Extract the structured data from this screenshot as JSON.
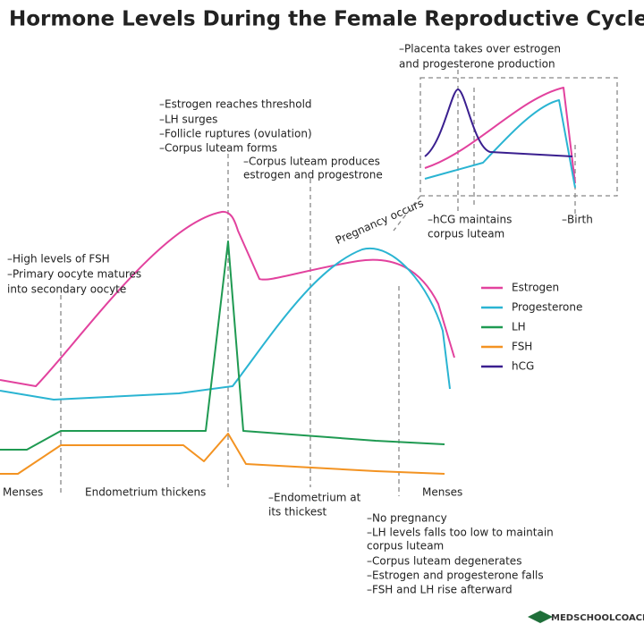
{
  "title": "Hormone Levels During the Female Reproductive Cycle",
  "legend": {
    "items": [
      {
        "name": "Estrogen",
        "color": "#e2429e"
      },
      {
        "name": "Progesterone",
        "color": "#2ab4d2"
      },
      {
        "name": "LH",
        "color": "#1f9a52"
      },
      {
        "name": "FSH",
        "color": "#f39322"
      },
      {
        "name": "hCG",
        "color": "#3a1f8f"
      }
    ]
  },
  "annotations": {
    "placenta": [
      "–Placenta takes over estrogen",
      "and progesterone production"
    ],
    "ovulation": [
      "–Estrogen reaches threshold",
      "–LH surges",
      "–Follicle ruptures (ovulation)",
      "–Corpus luteam forms"
    ],
    "corpus_luteum": [
      "–Corpus luteam produces",
      "estrogen and progestrone"
    ],
    "fsh": [
      "–High levels  of FSH",
      "–Primary oocyte matures",
      "into secondary oocyte"
    ],
    "hcg": [
      "–hCG maintains",
      "corpus luteam"
    ],
    "birth": "–Birth",
    "pregnancy": "Pregnancy occurs",
    "no_pregnancy": [
      "–No pregnancy",
      "–LH levels falls too low to maintain",
      "corpus luteam",
      "–Corpus luteam degenerates",
      "–Estrogen and progesterone falls",
      "–FSH and LH rise afterward"
    ]
  },
  "phases": {
    "menses_start": "Menses",
    "thickens": "Endometrium thickens",
    "thickest": [
      "–Endometrium at",
      "its thickest"
    ],
    "menses_end": "Menses"
  },
  "logo": "MEDSCHOOLCOACH"
}
